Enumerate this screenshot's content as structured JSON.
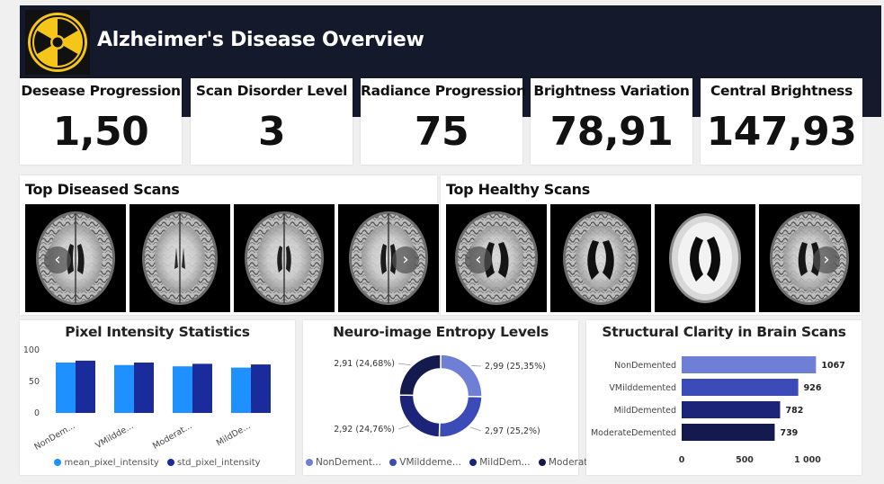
{
  "header": {
    "title": "Alzheimer's Disease Overview",
    "logo_icon": "radiation-icon"
  },
  "kpis": [
    {
      "label": "Desease Progression",
      "value": "1,50"
    },
    {
      "label": "Scan Disorder Level",
      "value": "3"
    },
    {
      "label": "Radiance Progression",
      "value": "75"
    },
    {
      "label": "Brightness Variation",
      "value": "78,91"
    },
    {
      "label": "Central Brightness",
      "value": "147,93"
    }
  ],
  "scans": {
    "diseased_title": "Top Diseased Scans",
    "healthy_title": "Top Healthy Scans",
    "prev_icon": "chevron-left-icon",
    "next_icon": "chevron-right-icon",
    "prev_glyph": "‹",
    "next_glyph": "›"
  },
  "colors": {
    "header": "#141a2c",
    "accent": "#f5c518",
    "blue_light": "#1e90ff",
    "blue_dark": "#1a2b9c",
    "navy": "#141a4e"
  },
  "chart_data": [
    {
      "type": "bar",
      "title": "Pixel Intensity Statistics",
      "categories": [
        "NonDem...",
        "VMildde...",
        "Moderat...",
        "MildDe..."
      ],
      "series": [
        {
          "name": "mean_pixel_intensity",
          "values": [
            80,
            76,
            74,
            72
          ]
        },
        {
          "name": "std_pixel_intensity",
          "values": [
            83,
            80,
            78,
            77
          ]
        }
      ],
      "yticks": [
        "0",
        "50",
        "100"
      ],
      "ylim": [
        0,
        100
      ],
      "legend": "bottom"
    },
    {
      "type": "pie",
      "title": "Neuro-image Entropy Levels",
      "slices": [
        {
          "name": "NonDement...",
          "value": 2.99,
          "label": "2,99 (25,35%)"
        },
        {
          "name": "VMilddeme...",
          "value": 2.97,
          "label": "2,97 (25,2%)"
        },
        {
          "name": "MildDem...",
          "value": 2.92,
          "label": "2,92 (24,76%)"
        },
        {
          "name": "Moderat...",
          "value": 2.91,
          "label": "2,91 (24,68%)"
        }
      ],
      "legend": "bottom"
    },
    {
      "type": "bar",
      "title": "Structural Clarity in Brain Scans",
      "orientation": "horizontal",
      "categories": [
        "NonDemented",
        "VMilddemented",
        "MildDemented",
        "ModerateDemented"
      ],
      "values": [
        1067,
        926,
        782,
        739
      ],
      "value_labels": [
        "1067",
        "926",
        "782",
        "739"
      ],
      "xticks": [
        "0",
        "500",
        "1 000"
      ],
      "xlim": [
        0,
        1000
      ]
    }
  ]
}
